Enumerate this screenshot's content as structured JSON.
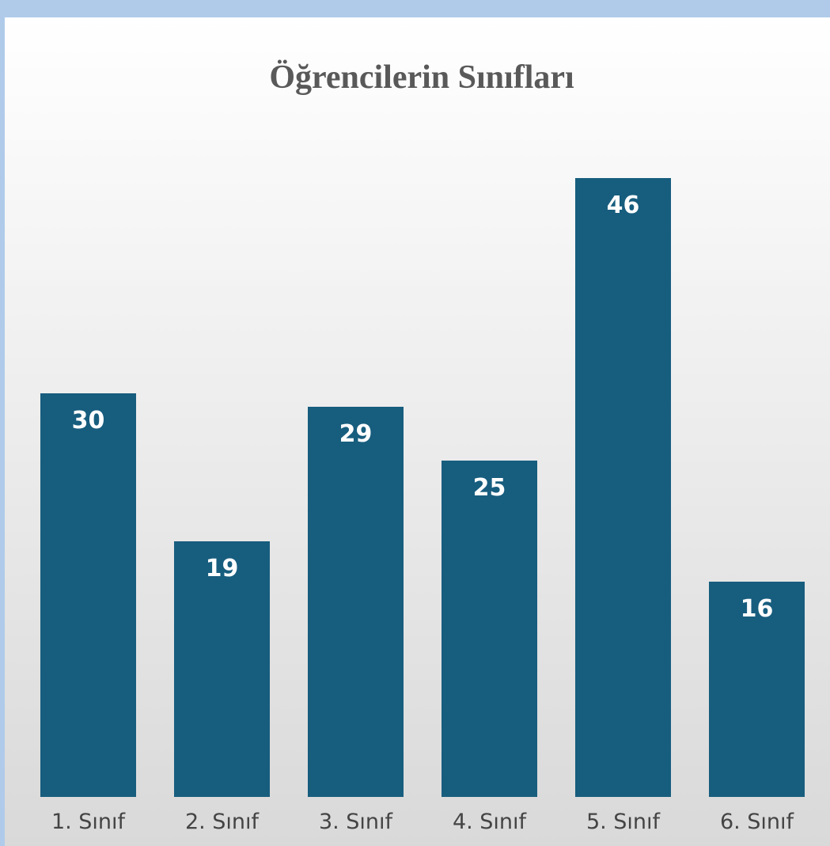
{
  "chart_data": {
    "type": "bar",
    "title": "Öğrencilerin Sınıfları",
    "categories": [
      "1. Sınıf",
      "2. Sınıf",
      "3. Sınıf",
      "4. Sınıf",
      "5. Sınıf",
      "6. Sınıf"
    ],
    "values": [
      30,
      19,
      29,
      25,
      46,
      16
    ],
    "color": "#175d7e"
  }
}
